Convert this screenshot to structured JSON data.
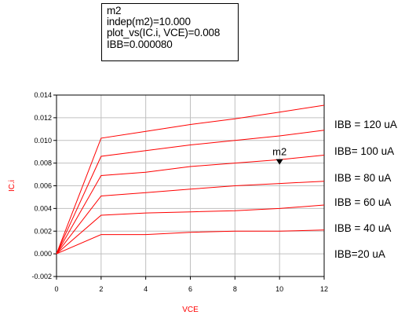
{
  "marker_readout": {
    "name": "m2",
    "line1": "indep(m2)=10.000",
    "line2": "plot_vs(IC.i, VCE)=0.008",
    "line3": "IBB=0.000080"
  },
  "chart_data": {
    "type": "line",
    "title": "",
    "xlabel": "VCE",
    "ylabel": "IC.i",
    "xlim": [
      0,
      12
    ],
    "ylim": [
      -0.002,
      0.014
    ],
    "xticks": [
      "0",
      "2",
      "4",
      "6",
      "8",
      "10",
      "12"
    ],
    "yticks": [
      "-0.002",
      "0.000",
      "0.002",
      "0.004",
      "0.006",
      "0.008",
      "0.010",
      "0.012",
      "0.014"
    ],
    "grid": true,
    "series_color": "#ff0000",
    "x": [
      0,
      2,
      4,
      6,
      8,
      10,
      12
    ],
    "series": [
      {
        "name": "IBB = 120 uA",
        "values": [
          0,
          0.0102,
          0.0108,
          0.0114,
          0.0119,
          0.0125,
          0.0131
        ]
      },
      {
        "name": "IBB= 100 uA",
        "values": [
          0,
          0.0086,
          0.0091,
          0.0096,
          0.01,
          0.0104,
          0.0109
        ]
      },
      {
        "name": "IBB = 80 uA",
        "values": [
          0,
          0.0069,
          0.0072,
          0.0077,
          0.008,
          0.0083,
          0.0087
        ]
      },
      {
        "name": "IBB = 60 uA",
        "values": [
          0,
          0.0051,
          0.0054,
          0.0057,
          0.006,
          0.0062,
          0.0064
        ]
      },
      {
        "name": "IBB = 40 uA",
        "values": [
          0,
          0.0034,
          0.0036,
          0.0037,
          0.0038,
          0.004,
          0.0043
        ]
      },
      {
        "name": "IBB=20 uA",
        "values": [
          0,
          0.0017,
          0.0017,
          0.0019,
          0.002,
          0.002,
          0.0021
        ]
      }
    ],
    "marker": {
      "label": "m2",
      "x": 10,
      "y": 0.008
    }
  }
}
